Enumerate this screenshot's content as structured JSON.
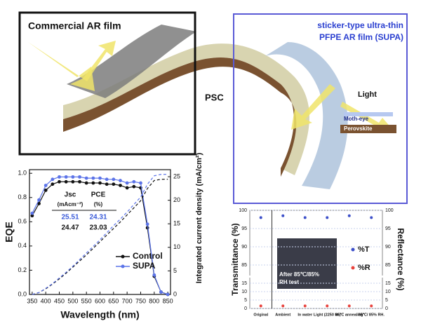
{
  "illustration": {
    "left_label": "Commercial AR film",
    "right_label": [
      "sticker-type ultra-thin",
      "PFPE AR film (SUPA)"
    ],
    "center_label": "PSC",
    "inset": {
      "light": "Light",
      "moth_eye": "Moth-eye",
      "perovskite": "Perovskite"
    }
  },
  "chart_data": [
    {
      "type": "line",
      "x_label": "Wavelength (nm)",
      "y_label": "EQE",
      "y2_label": "Integrated current density (mA/cm²)",
      "x": [
        350,
        375,
        400,
        425,
        450,
        475,
        500,
        525,
        550,
        575,
        600,
        625,
        650,
        675,
        700,
        725,
        750,
        775,
        800,
        825,
        850
      ],
      "series": [
        {
          "name": "Control",
          "color": "#111111",
          "values": [
            0.65,
            0.75,
            0.86,
            0.91,
            0.93,
            0.93,
            0.93,
            0.93,
            0.92,
            0.92,
            0.92,
            0.91,
            0.91,
            0.9,
            0.88,
            0.89,
            0.88,
            0.55,
            0.15,
            0.02,
            0.0
          ]
        },
        {
          "name": "SUPA",
          "color": "#5b73e8",
          "values": [
            0.67,
            0.78,
            0.9,
            0.95,
            0.97,
            0.97,
            0.97,
            0.97,
            0.96,
            0.96,
            0.96,
            0.95,
            0.95,
            0.94,
            0.92,
            0.93,
            0.92,
            0.58,
            0.16,
            0.02,
            0.0
          ]
        },
        {
          "name": "Control",
          "color": "#111111",
          "axis": "y2",
          "dashed": true,
          "values": [
            0,
            0.4,
            1.2,
            2.2,
            3.3,
            4.5,
            5.8,
            7.1,
            8.4,
            9.8,
            11.2,
            12.6,
            14.0,
            15.4,
            16.9,
            18.4,
            19.9,
            22.5,
            24.2,
            24.45,
            24.47
          ]
        },
        {
          "name": "SUPA",
          "color": "#5b73e8",
          "axis": "y2",
          "dashed": true,
          "values": [
            0,
            0.4,
            1.3,
            2.3,
            3.5,
            4.7,
            6.0,
            7.4,
            8.8,
            10.2,
            11.6,
            13.1,
            14.6,
            16.0,
            17.5,
            19.1,
            20.7,
            23.4,
            25.2,
            25.49,
            25.51
          ]
        }
      ],
      "xlim": [
        340,
        860
      ],
      "xticks": [
        350,
        400,
        450,
        500,
        550,
        600,
        650,
        700,
        750,
        800,
        850
      ],
      "ylim": [
        0,
        1.03
      ],
      "yticks": [
        {
          "value": 0,
          "label": "0.0"
        },
        {
          "value": 0.2,
          "label": "0.2"
        },
        {
          "value": 0.4,
          "label": "0.4"
        },
        {
          "value": 0.6,
          "label": "0.6"
        },
        {
          "value": 0.8,
          "label": "0.8"
        },
        {
          "value": 1,
          "label": "1.0"
        }
      ],
      "y2lim": [
        0,
        26.5
      ],
      "y2ticks": [
        0,
        5,
        10,
        15,
        20,
        25
      ],
      "legend": "lower right",
      "table": {
        "header": [
          [
            "Jsc",
            "(mAcm⁻²)"
          ],
          [
            "PCE",
            "(%)"
          ]
        ],
        "rows": [
          [
            25.51,
            24.31
          ],
          [
            24.47,
            23.03
          ]
        ],
        "row_colors": [
          "#3a5bd9",
          "#111111"
        ]
      }
    },
    {
      "type": "scatter",
      "y_label": "Transmittance (%)",
      "y2_label": "Reflectance (%)",
      "categories": [
        "Original",
        "Ambient",
        "In water",
        "Light (2250 lm)",
        "85℃ annealing",
        "85℃/ 85% RH."
      ],
      "series": [
        {
          "name": "%T",
          "color": "#3c4fc9",
          "values": [
            98,
            98.5,
            98,
            98,
            98.5,
            98
          ]
        },
        {
          "name": "%R",
          "color": "#e8413c",
          "values": [
            1.5,
            1.5,
            1.5,
            1.5,
            1.5,
            1.5
          ]
        }
      ],
      "ylim": [
        0,
        100
      ],
      "ybreak": [
        17.5,
        82.5
      ],
      "yticks": [
        0,
        5,
        10,
        15,
        85,
        90,
        95,
        100
      ],
      "inset_text": [
        "After 85℃/85%",
        "RH test"
      ],
      "legend": "right"
    }
  ]
}
